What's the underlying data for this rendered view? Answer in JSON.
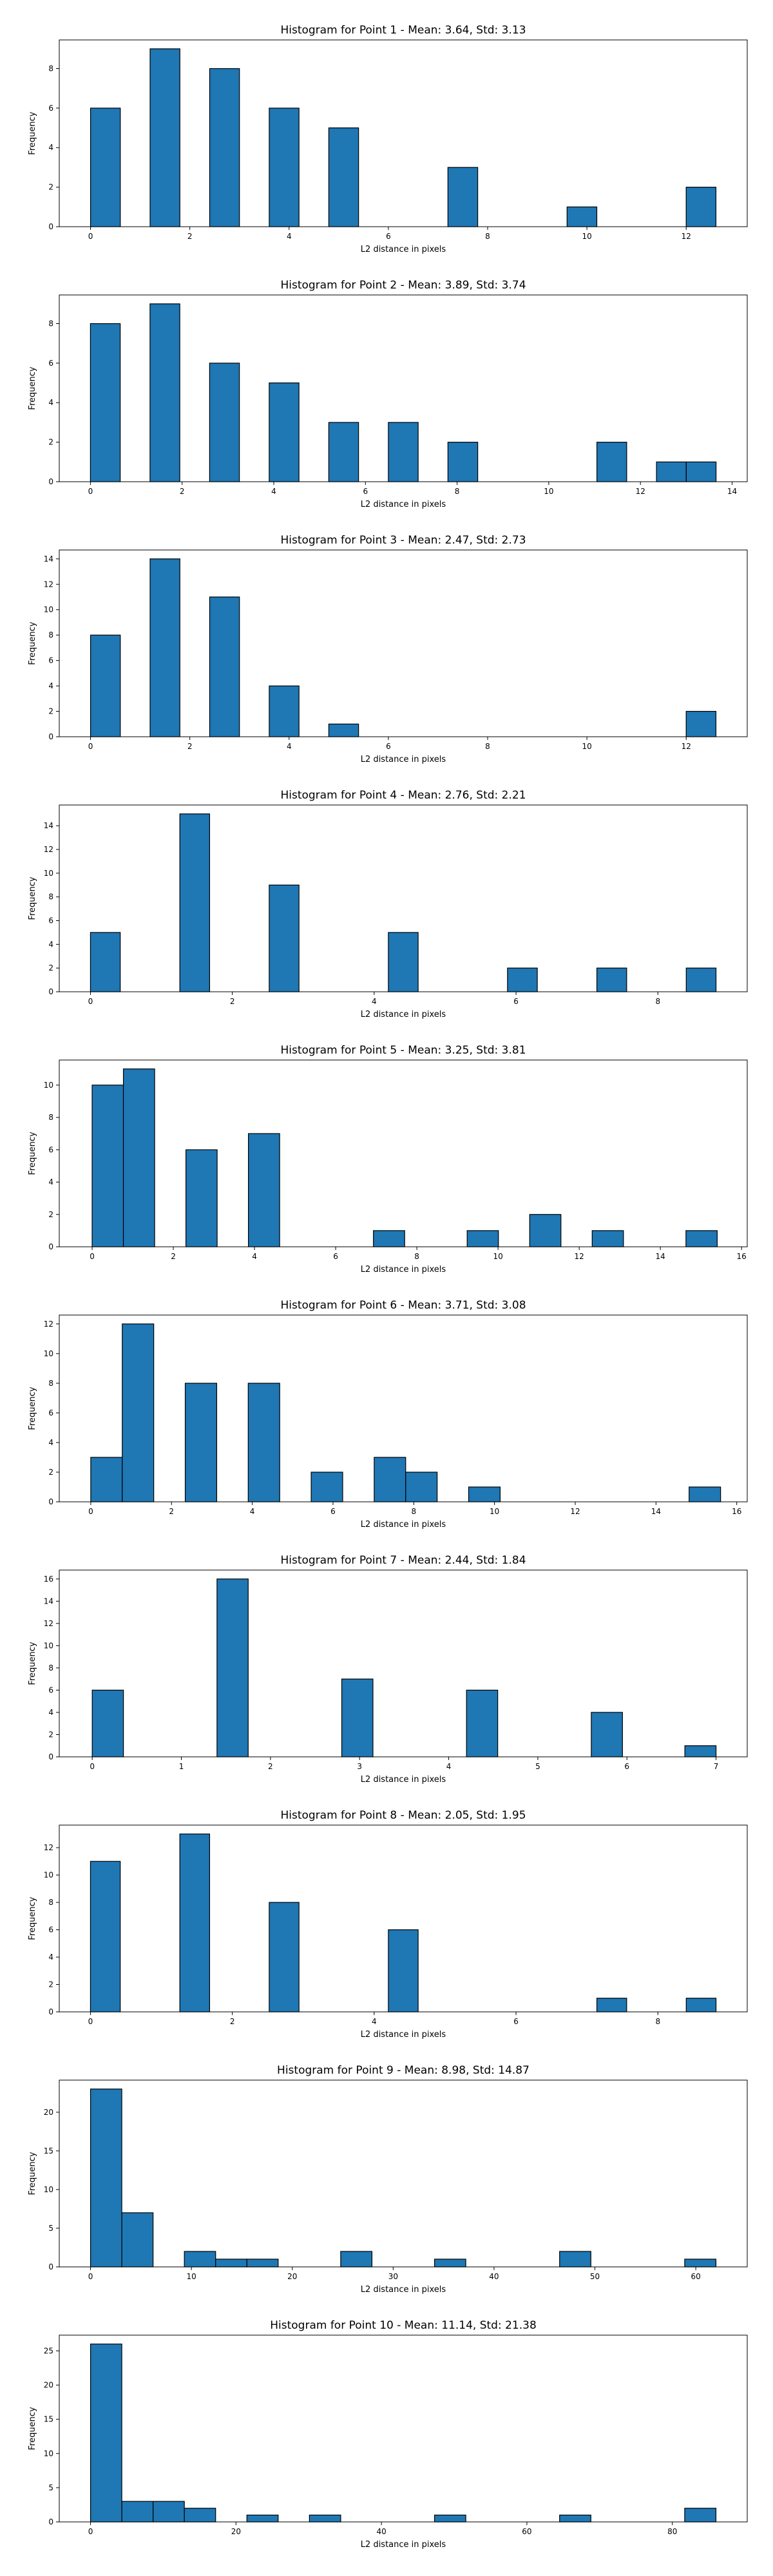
{
  "chart_data": [
    {
      "type": "bar",
      "title": "Histogram for Point 1 - Mean: 3.64, Std: 3.13",
      "xlabel": "L2 distance in pixels",
      "ylabel": "Frequency",
      "bin_edges": [
        0,
        0.6,
        1.2,
        1.8,
        2.4,
        3.0,
        3.6,
        4.2,
        4.8,
        5.4,
        6.0,
        6.6,
        7.2,
        7.8,
        8.4,
        9.0,
        9.6,
        10.2,
        10.8,
        11.4,
        12.0,
        12.6
      ],
      "values": [
        6,
        0,
        9,
        0,
        8,
        0,
        6,
        0,
        5,
        0,
        0,
        0,
        3,
        0,
        0,
        0,
        1,
        0,
        0,
        0,
        2
      ],
      "xlim": [
        -0.63,
        13.23
      ],
      "ylim": [
        0,
        9.45
      ],
      "xticks": [
        0,
        2,
        4,
        6,
        8,
        10,
        12
      ],
      "yticks": [
        0,
        2,
        4,
        6,
        8
      ],
      "grid": false,
      "color": "#1f77b4"
    },
    {
      "type": "bar",
      "title": "Histogram for Point 2 - Mean: 3.89, Std: 3.74",
      "xlabel": "L2 distance in pixels",
      "ylabel": "Frequency",
      "bin_edges": [
        0,
        0.65,
        1.3,
        1.95,
        2.6,
        3.25,
        3.9,
        4.55,
        5.2,
        5.85,
        6.5,
        7.15,
        7.8,
        8.45,
        9.1,
        9.75,
        10.4,
        11.05,
        11.7,
        12.35,
        13.0,
        13.65
      ],
      "values": [
        8,
        0,
        9,
        0,
        6,
        0,
        5,
        0,
        3,
        0,
        3,
        0,
        2,
        0,
        0,
        0,
        0,
        2,
        0,
        1,
        1
      ],
      "xlim": [
        -0.68,
        14.33
      ],
      "ylim": [
        0,
        9.45
      ],
      "xticks": [
        0,
        2,
        4,
        6,
        8,
        10,
        12,
        14
      ],
      "yticks": [
        0,
        2,
        4,
        6,
        8
      ],
      "grid": false,
      "color": "#1f77b4"
    },
    {
      "type": "bar",
      "title": "Histogram for Point 3 - Mean: 2.47, Std: 2.73",
      "xlabel": "L2 distance in pixels",
      "ylabel": "Frequency",
      "bin_edges": [
        0,
        0.6,
        1.2,
        1.8,
        2.4,
        3.0,
        3.6,
        4.2,
        4.8,
        5.4,
        6.0,
        6.6,
        7.2,
        7.8,
        8.4,
        9.0,
        9.6,
        10.2,
        10.8,
        11.4,
        12.0,
        12.6
      ],
      "values": [
        8,
        0,
        14,
        0,
        11,
        0,
        4,
        0,
        1,
        0,
        0,
        0,
        0,
        0,
        0,
        0,
        0,
        0,
        0,
        0,
        2
      ],
      "xlim": [
        -0.63,
        13.23
      ],
      "ylim": [
        0,
        14.7
      ],
      "xticks": [
        0,
        2,
        4,
        6,
        8,
        10,
        12
      ],
      "yticks": [
        0,
        2,
        4,
        6,
        8,
        10,
        12,
        14
      ],
      "grid": false,
      "color": "#1f77b4"
    },
    {
      "type": "bar",
      "title": "Histogram for Point 4 - Mean: 2.76, Std: 2.21",
      "xlabel": "L2 distance in pixels",
      "ylabel": "Frequency",
      "bin_edges": [
        0,
        0.42,
        0.84,
        1.26,
        1.68,
        2.1,
        2.52,
        2.94,
        3.36,
        3.78,
        4.2,
        4.62,
        5.04,
        5.46,
        5.88,
        6.3,
        6.72,
        7.14,
        7.56,
        7.98,
        8.4,
        8.82
      ],
      "values": [
        5,
        0,
        0,
        15,
        0,
        0,
        9,
        0,
        0,
        0,
        5,
        0,
        0,
        0,
        2,
        0,
        0,
        2,
        0,
        0,
        2
      ],
      "xlim": [
        -0.44,
        9.26
      ],
      "ylim": [
        0,
        15.75
      ],
      "xticks": [
        0,
        2,
        4,
        6,
        8
      ],
      "yticks": [
        0,
        2,
        4,
        6,
        8,
        10,
        12,
        14
      ],
      "grid": false,
      "color": "#1f77b4"
    },
    {
      "type": "bar",
      "title": "Histogram for Point 5 - Mean: 3.25, Std: 3.81",
      "xlabel": "L2 distance in pixels",
      "ylabel": "Frequency",
      "bin_edges": [
        0,
        0.77,
        1.54,
        2.31,
        3.08,
        3.85,
        4.62,
        5.39,
        6.16,
        6.93,
        7.7,
        8.47,
        9.24,
        10.01,
        10.78,
        11.55,
        12.32,
        13.09,
        13.86,
        14.63,
        15.4,
        16.17
      ],
      "values": [
        10,
        11,
        0,
        6,
        0,
        7,
        0,
        0,
        0,
        1,
        0,
        0,
        1,
        0,
        2,
        0,
        1,
        0,
        0,
        1,
        0
      ],
      "xlim": [
        -0.81,
        16.14
      ],
      "ylim": [
        0,
        11.55
      ],
      "xticks": [
        0,
        2,
        4,
        6,
        8,
        10,
        12,
        14,
        16
      ],
      "yticks": [
        0,
        2,
        4,
        6,
        8,
        10
      ],
      "grid": false,
      "color": "#1f77b4"
    },
    {
      "type": "bar",
      "title": "Histogram for Point 6 - Mean: 3.71, Std: 3.08",
      "xlabel": "L2 distance in pixels",
      "ylabel": "Frequency",
      "bin_edges": [
        0,
        0.78,
        1.56,
        2.34,
        3.12,
        3.9,
        4.68,
        5.46,
        6.24,
        7.02,
        7.8,
        8.58,
        9.36,
        10.14,
        10.92,
        11.7,
        12.48,
        13.26,
        14.04,
        14.82,
        15.6,
        16.38
      ],
      "values": [
        3,
        12,
        0,
        8,
        0,
        8,
        0,
        2,
        0,
        3,
        2,
        0,
        1,
        0,
        0,
        0,
        0,
        0,
        0,
        1,
        0
      ],
      "xlim": [
        -0.78,
        16.26
      ],
      "ylim": [
        0,
        12.6
      ],
      "xticks": [
        0,
        2,
        4,
        6,
        8,
        10,
        12,
        14,
        16
      ],
      "yticks": [
        0,
        2,
        4,
        6,
        8,
        10,
        12
      ],
      "grid": false,
      "color": "#1f77b4"
    },
    {
      "type": "bar",
      "title": "Histogram for Point 7 - Mean: 2.44, Std: 1.84",
      "xlabel": "L2 distance in pixels",
      "ylabel": "Frequency",
      "bin_edges": [
        0,
        0.35,
        0.7,
        1.05,
        1.4,
        1.75,
        2.1,
        2.45,
        2.8,
        3.15,
        3.5,
        3.85,
        4.2,
        4.55,
        4.9,
        5.25,
        5.6,
        5.95,
        6.3,
        6.65,
        7.0,
        7.35
      ],
      "values": [
        6,
        0,
        0,
        0,
        16,
        0,
        0,
        0,
        7,
        0,
        0,
        0,
        6,
        0,
        0,
        0,
        4,
        0,
        0,
        1,
        0
      ],
      "xlim": [
        -0.37,
        7.35
      ],
      "ylim": [
        0,
        16.8
      ],
      "xticks": [
        0,
        1,
        2,
        3,
        4,
        5,
        6,
        7
      ],
      "yticks": [
        0,
        2,
        4,
        6,
        8,
        10,
        12,
        14,
        16
      ],
      "grid": false,
      "color": "#1f77b4"
    },
    {
      "type": "bar",
      "title": "Histogram for Point 8 - Mean: 2.05, Std: 1.95",
      "xlabel": "L2 distance in pixels",
      "ylabel": "Frequency",
      "bin_edges": [
        0,
        0.42,
        0.84,
        1.26,
        1.68,
        2.1,
        2.52,
        2.94,
        3.36,
        3.78,
        4.2,
        4.62,
        5.04,
        5.46,
        5.88,
        6.3,
        6.72,
        7.14,
        7.56,
        7.98,
        8.4,
        8.82
      ],
      "values": [
        11,
        0,
        0,
        13,
        0,
        0,
        8,
        0,
        0,
        0,
        6,
        0,
        0,
        0,
        0,
        0,
        0,
        1,
        0,
        0,
        1
      ],
      "xlim": [
        -0.44,
        9.26
      ],
      "ylim": [
        0,
        13.65
      ],
      "xticks": [
        0,
        2,
        4,
        6,
        8
      ],
      "yticks": [
        0,
        2,
        4,
        6,
        8,
        10,
        12
      ],
      "grid": false,
      "color": "#1f77b4"
    },
    {
      "type": "bar",
      "title": "Histogram for Point 9 - Mean: 8.98, Std: 14.87",
      "xlabel": "L2 distance in pixels",
      "ylabel": "Frequency",
      "bin_edges": [
        0,
        3.1,
        6.2,
        9.3,
        12.4,
        15.5,
        18.6,
        21.7,
        24.8,
        27.9,
        31.0,
        34.1,
        37.2,
        40.3,
        43.4,
        46.5,
        49.6,
        52.7,
        55.8,
        58.9,
        62.0,
        65.1
      ],
      "values": [
        23,
        7,
        0,
        2,
        1,
        1,
        0,
        0,
        2,
        0,
        0,
        1,
        0,
        0,
        0,
        2,
        0,
        0,
        0,
        1,
        0
      ],
      "xlim": [
        -3.1,
        65.1
      ],
      "ylim": [
        0,
        24.15
      ],
      "xticks": [
        0,
        10,
        20,
        30,
        40,
        50,
        60
      ],
      "yticks": [
        0,
        5,
        10,
        15,
        20
      ],
      "grid": false,
      "color": "#1f77b4"
    },
    {
      "type": "bar",
      "title": "Histogram for Point 10 - Mean: 11.14, Std: 21.38",
      "xlabel": "L2 distance in pixels",
      "ylabel": "Frequency",
      "bin_edges": [
        0,
        4.3,
        8.6,
        12.9,
        17.2,
        21.5,
        25.8,
        30.1,
        34.4,
        38.7,
        43.0,
        47.3,
        51.6,
        55.9,
        60.2,
        64.5,
        68.8,
        73.1,
        77.4,
        81.7,
        86.0,
        90.3
      ],
      "values": [
        26,
        3,
        3,
        2,
        0,
        1,
        0,
        1,
        0,
        0,
        0,
        1,
        0,
        0,
        0,
        1,
        0,
        0,
        0,
        2,
        0
      ],
      "xlim": [
        -4.3,
        90.3
      ],
      "ylim": [
        0,
        27.3
      ],
      "xticks": [
        0,
        20,
        40,
        60,
        80
      ],
      "yticks": [
        0,
        5,
        10,
        15,
        20,
        25
      ],
      "grid": false,
      "color": "#1f77b4"
    }
  ]
}
